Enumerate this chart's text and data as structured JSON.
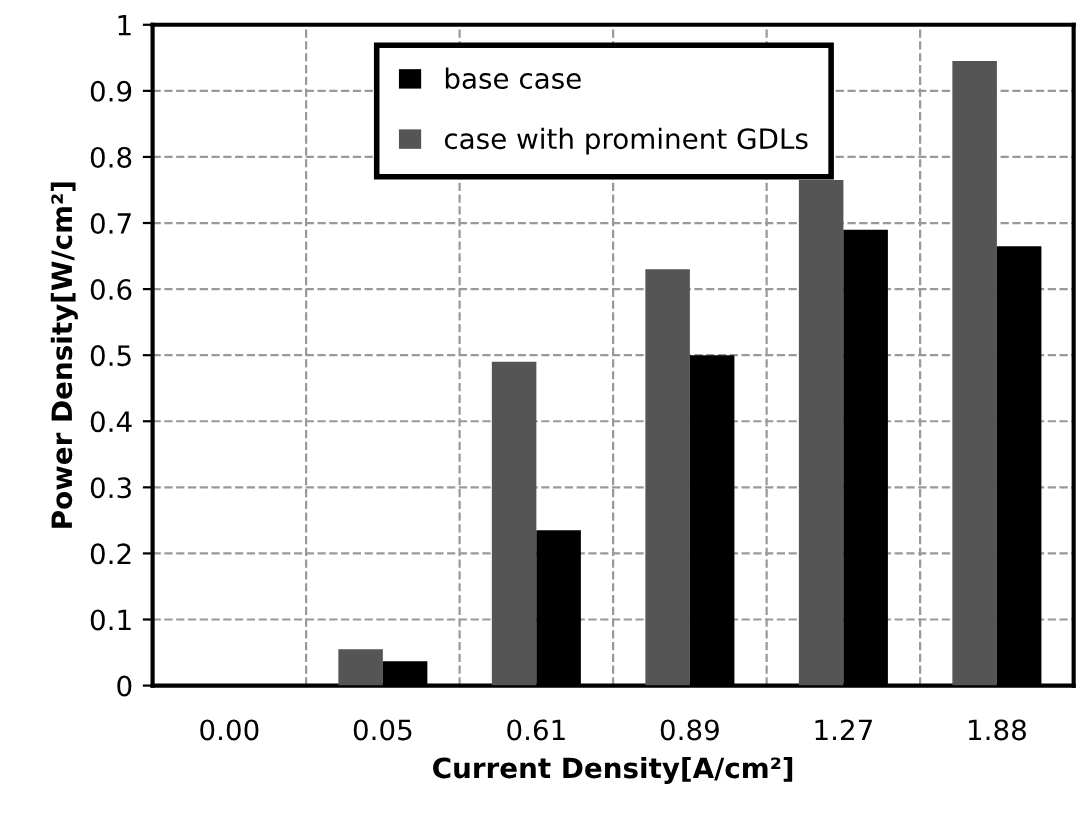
{
  "chart_data": {
    "type": "bar",
    "xlabel": "Current Density[A/cm²]",
    "ylabel": "Power Density[W/cm²]",
    "categories": [
      "0.00",
      "0.05",
      "0.61",
      "0.89",
      "1.27",
      "1.88"
    ],
    "series": [
      {
        "name": "case with prominent GDLs",
        "color": "#555555",
        "values": [
          0,
          0.055,
          0.49,
          0.63,
          0.765,
          0.945
        ]
      },
      {
        "name": "base case",
        "color": "#000000",
        "values": [
          0,
          0.037,
          0.235,
          0.5,
          0.69,
          0.665
        ]
      }
    ],
    "ylim": [
      0,
      1
    ],
    "yticks": [
      0,
      0.1,
      0.2,
      0.3,
      0.4,
      0.5,
      0.6,
      0.7,
      0.8,
      0.9,
      1
    ],
    "grid": true,
    "legend": "top"
  }
}
